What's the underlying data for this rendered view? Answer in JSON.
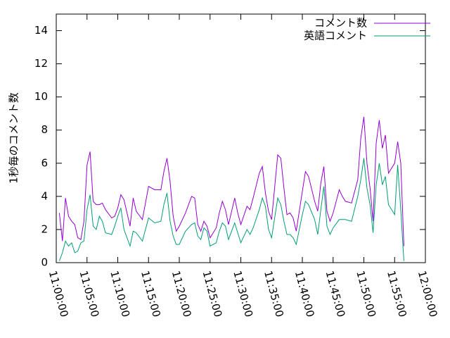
{
  "chart_data": {
    "type": "line",
    "y_label": "1秒毎のコメント数",
    "x": [
      "11:00:30",
      "11:01:00",
      "11:01:30",
      "11:02:00",
      "11:02:30",
      "11:03:00",
      "11:03:30",
      "11:04:00",
      "11:04:30",
      "11:05:00",
      "11:05:30",
      "11:06:00",
      "11:06:30",
      "11:07:00",
      "11:07:30",
      "11:08:00",
      "11:09:00",
      "11:09:30",
      "11:10:00",
      "11:10:30",
      "11:11:00",
      "11:12:00",
      "11:12:30",
      "11:13:00",
      "11:14:00",
      "11:15:00",
      "11:16:00",
      "11:17:00",
      "11:17:30",
      "11:18:00",
      "11:18:30",
      "11:19:00",
      "11:19:30",
      "11:20:00",
      "11:21:00",
      "11:22:00",
      "11:22:30",
      "11:23:00",
      "11:23:30",
      "11:24:00",
      "11:24:30",
      "11:25:00",
      "11:26:00",
      "11:26:30",
      "11:27:00",
      "11:27:30",
      "11:28:00",
      "11:29:00",
      "11:29:30",
      "11:30:00",
      "11:31:00",
      "11:31:30",
      "11:32:00",
      "11:33:00",
      "11:33:30",
      "11:34:00",
      "11:34:30",
      "11:35:00",
      "11:36:00",
      "11:36:30",
      "11:37:00",
      "11:37:30",
      "11:38:00",
      "11:38:30",
      "11:39:00",
      "11:40:00",
      "11:40:30",
      "11:41:00",
      "11:42:00",
      "11:42:30",
      "11:43:00",
      "11:43:30",
      "11:44:00",
      "11:44:30",
      "11:45:00",
      "11:46:00",
      "11:46:30",
      "11:47:00",
      "11:48:00",
      "11:49:00",
      "11:49:30",
      "11:50:00",
      "11:50:30",
      "11:51:00",
      "11:51:30",
      "11:52:00",
      "11:52:30",
      "11:53:00",
      "11:53:30",
      "11:54:00",
      "11:55:00",
      "11:55:30",
      "11:56:00",
      "11:56:30"
    ],
    "series": [
      {
        "name": "コメント数",
        "color": "#9400d3",
        "values": [
          3.0,
          1.3,
          3.9,
          2.8,
          2.5,
          2.3,
          1.5,
          1.4,
          2.5,
          5.9,
          6.7,
          3.7,
          3.5,
          3.5,
          3.6,
          3.2,
          2.7,
          2.8,
          3.3,
          4.1,
          3.8,
          2.2,
          3.9,
          3.1,
          2.6,
          4.6,
          4.4,
          4.4,
          5.5,
          6.3,
          4.9,
          2.8,
          1.9,
          2.2,
          3.0,
          4.0,
          3.9,
          2.3,
          1.9,
          2.5,
          2.2,
          1.5,
          2.1,
          3.0,
          3.7,
          3.2,
          2.3,
          3.9,
          3.0,
          2.3,
          3.4,
          3.2,
          3.9,
          5.4,
          5.8,
          4.2,
          3.1,
          2.6,
          6.5,
          6.3,
          4.5,
          2.9,
          3.0,
          2.7,
          1.9,
          4.3,
          5.5,
          5.2,
          3.7,
          3.1,
          4.8,
          5.8,
          3.1,
          2.5,
          3.0,
          4.4,
          4.0,
          3.7,
          3.6,
          5.0,
          7.5,
          8.8,
          6.0,
          4.5,
          2.5,
          7.2,
          8.6,
          6.9,
          7.7,
          5.4,
          6.0,
          7.3,
          6.0,
          1.0
        ]
      },
      {
        "name": "英語コメント",
        "color": "#009e73",
        "values": [
          0.1,
          0.6,
          1.3,
          1.0,
          1.2,
          0.6,
          0.7,
          1.2,
          1.3,
          3.2,
          4.1,
          2.2,
          2.0,
          2.8,
          2.5,
          1.8,
          1.7,
          2.2,
          2.8,
          3.3,
          2.0,
          1.0,
          1.9,
          1.8,
          1.3,
          2.7,
          2.4,
          2.5,
          3.5,
          4.2,
          2.5,
          1.6,
          1.1,
          1.1,
          1.9,
          2.3,
          2.4,
          1.6,
          1.4,
          2.1,
          1.9,
          1.0,
          1.2,
          1.9,
          2.4,
          2.2,
          1.4,
          2.4,
          1.8,
          1.2,
          2.0,
          1.7,
          2.1,
          3.2,
          3.9,
          3.4,
          2.0,
          1.5,
          3.9,
          3.5,
          2.5,
          1.7,
          1.7,
          1.5,
          1.1,
          2.9,
          3.7,
          3.5,
          2.6,
          1.7,
          3.2,
          4.6,
          2.2,
          1.7,
          2.1,
          2.6,
          2.6,
          2.6,
          2.5,
          4.0,
          5.0,
          6.3,
          4.5,
          3.5,
          1.8,
          4.7,
          6.0,
          4.7,
          5.2,
          3.5,
          2.9,
          5.9,
          3.2,
          0.1
        ]
      }
    ],
    "xlim": [
      "11:00:00",
      "12:00:00"
    ],
    "xticks": [
      "11:00:00",
      "11:05:00",
      "11:10:00",
      "11:15:00",
      "11:20:00",
      "11:25:00",
      "11:30:00",
      "11:35:00",
      "11:40:00",
      "11:45:00",
      "11:50:00",
      "11:55:00",
      "12:00:00"
    ],
    "ylim": [
      0,
      15
    ],
    "yticks": [
      0,
      2,
      4,
      6,
      8,
      10,
      12,
      14
    ],
    "legend": "upper-right"
  }
}
